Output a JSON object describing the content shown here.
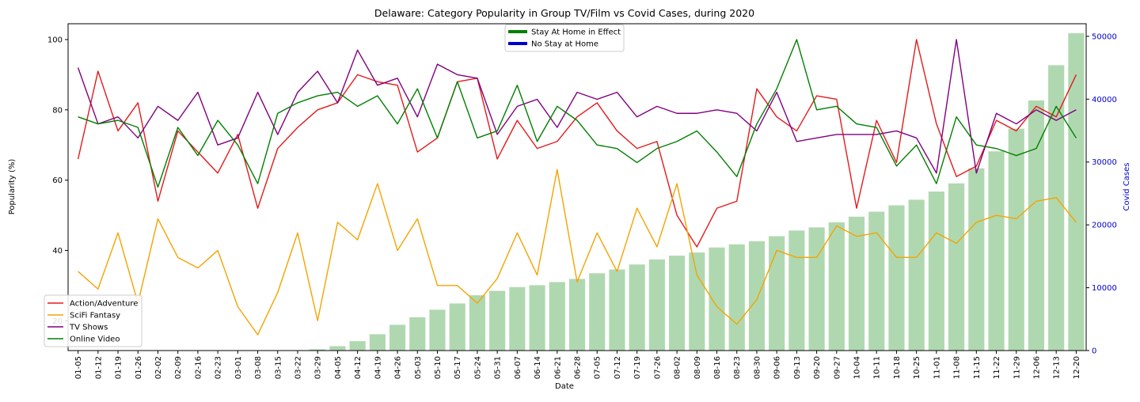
{
  "chart_data": {
    "type": "line",
    "title": "Delaware: Category Popularity in Group TV/Film vs Covid Cases, during 2020",
    "xlabel": "Date",
    "ylabel": "Popularity (%)",
    "y2label": "Covid Cases",
    "ylim": [
      11.5,
      104.5
    ],
    "y2lim": [
      0,
      52000
    ],
    "yticks": [
      20,
      40,
      60,
      80,
      100
    ],
    "y2ticks": [
      0,
      10000,
      20000,
      30000,
      40000,
      50000
    ],
    "grid": false,
    "categories": [
      "01-05",
      "01-12",
      "01-19",
      "01-26",
      "02-02",
      "02-09",
      "02-16",
      "02-23",
      "03-01",
      "03-08",
      "03-15",
      "03-22",
      "03-29",
      "04-05",
      "04-12",
      "04-19",
      "04-26",
      "05-03",
      "05-10",
      "05-17",
      "05-24",
      "05-31",
      "06-07",
      "06-14",
      "06-21",
      "06-28",
      "07-05",
      "07-12",
      "07-19",
      "07-26",
      "08-02",
      "08-09",
      "08-16",
      "08-23",
      "08-30",
      "09-06",
      "09-13",
      "09-20",
      "09-27",
      "10-04",
      "10-11",
      "10-18",
      "10-25",
      "11-01",
      "11-08",
      "11-15",
      "11-22",
      "11-29",
      "12-06",
      "12-13",
      "12-20"
    ],
    "series": [
      {
        "name": "Action/Adventure",
        "color": "#e41a1c",
        "values": [
          66,
          91,
          74,
          82,
          54,
          74,
          68,
          62,
          73,
          52,
          69,
          75,
          80,
          82,
          90,
          88,
          87,
          68,
          72,
          88,
          89,
          66,
          77,
          69,
          71,
          78,
          82,
          74,
          69,
          71,
          50,
          41,
          52,
          54,
          86,
          78,
          74,
          84,
          83,
          52,
          77,
          65,
          100,
          76,
          61,
          64,
          77,
          74,
          81,
          78,
          90
        ]
      },
      {
        "name": "SciFi Fantasy",
        "color": "#f5a300",
        "values": [
          34,
          29,
          45,
          25,
          49,
          38,
          35,
          40,
          24,
          16,
          28,
          45,
          20,
          48,
          43,
          59,
          40,
          49,
          30,
          30,
          25,
          32,
          45,
          33,
          63,
          31,
          45,
          34,
          52,
          41,
          59,
          33,
          24,
          19,
          26,
          40,
          38,
          38,
          47,
          44,
          45,
          38,
          38,
          45,
          42,
          48,
          50,
          49,
          54,
          55,
          48
        ]
      },
      {
        "name": "TV Shows",
        "color": "#800080",
        "values": [
          92,
          76,
          78,
          72,
          81,
          77,
          85,
          70,
          72,
          85,
          73,
          85,
          91,
          82,
          97,
          87,
          89,
          78,
          93,
          90,
          89,
          73,
          81,
          83,
          75,
          85,
          83,
          85,
          78,
          81,
          79,
          79,
          80,
          79,
          74,
          85,
          71,
          72,
          73,
          73,
          73,
          74,
          72,
          62,
          100,
          62,
          79,
          76,
          80,
          77,
          80
        ]
      },
      {
        "name": "Online Video",
        "color": "#008000",
        "values": [
          78,
          76,
          77,
          75,
          58,
          75,
          67,
          77,
          70,
          59,
          79,
          82,
          84,
          85,
          81,
          84,
          76,
          86,
          72,
          88,
          72,
          74,
          87,
          71,
          81,
          77,
          70,
          69,
          65,
          69,
          71,
          74,
          68,
          61,
          76,
          86,
          100,
          80,
          81,
          76,
          75,
          64,
          70,
          59,
          78,
          70,
          69,
          67,
          69,
          81,
          72
        ]
      }
    ],
    "bars": {
      "name": "Covid Cases",
      "color": "#b0d8b0",
      "values": [
        0,
        0,
        0,
        0,
        0,
        0,
        0,
        0,
        0,
        0,
        0,
        0,
        200,
        700,
        1500,
        2600,
        4100,
        5300,
        6500,
        7500,
        8800,
        9500,
        10100,
        10400,
        10900,
        11400,
        12300,
        12900,
        13700,
        14500,
        15100,
        15600,
        16400,
        16900,
        17400,
        18200,
        19100,
        19600,
        20400,
        21300,
        22100,
        23100,
        24000,
        25300,
        26600,
        29000,
        31700,
        35300,
        39800,
        45400,
        50500
      ]
    },
    "legend": {
      "placement": "lower-left",
      "entries": [
        "Action/Adventure",
        "SciFi Fantasy",
        "TV Shows",
        "Online Video"
      ]
    },
    "legend2": {
      "placement": "upper-center",
      "entries": [
        {
          "label": "Stay At Home in Effect",
          "color": "#008000"
        },
        {
          "label": "No Stay at Home",
          "color": "#0000cd"
        }
      ]
    },
    "y2_color": "#0000cd"
  }
}
